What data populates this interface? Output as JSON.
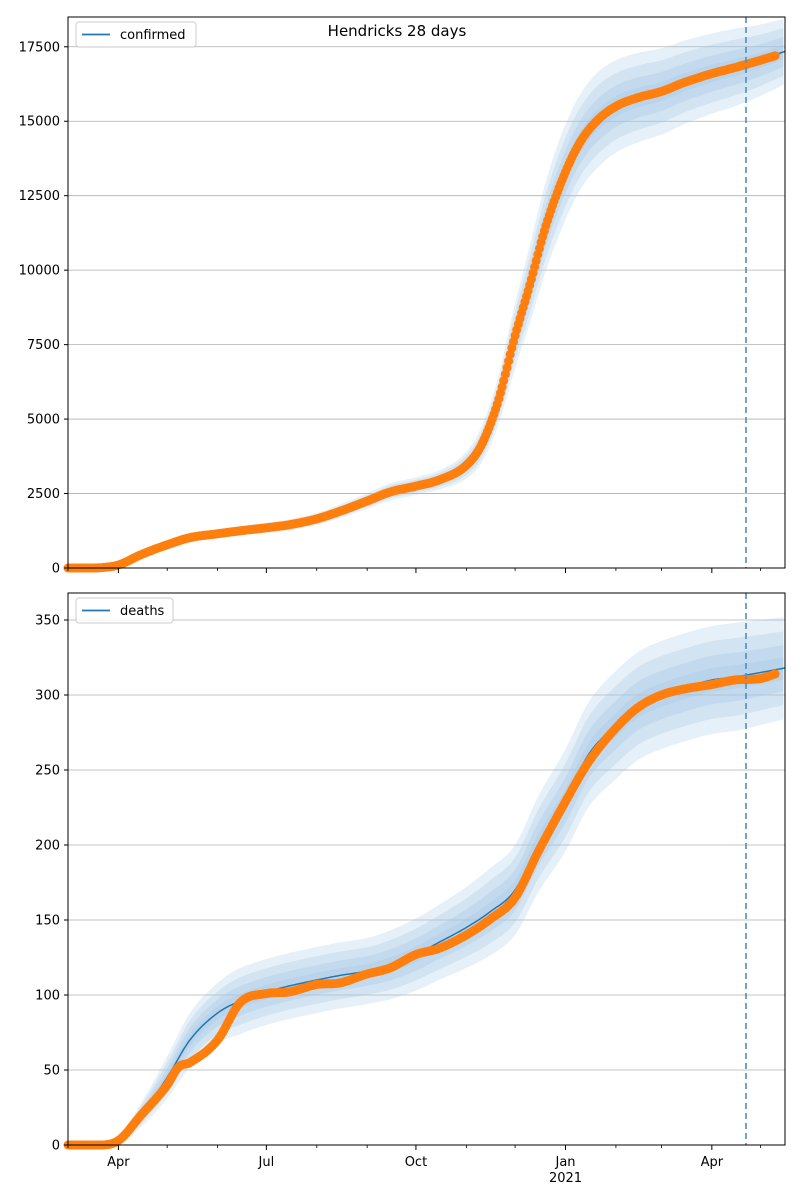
{
  "figure": {
    "title": "Hendricks 28 days"
  },
  "chart_data": [
    {
      "type": "line",
      "title": "Hendricks 28 days",
      "legend": {
        "label": "confirmed",
        "placement": "top-left"
      },
      "ylim": [
        0,
        18500
      ],
      "xlim": [
        "2020-03-01",
        "2021-05-16"
      ],
      "y_ticks": [
        0,
        2500,
        5000,
        7500,
        10000,
        12500,
        15000,
        17500
      ],
      "grid": "y",
      "forecast_start": "2021-04-22",
      "colors": {
        "fit": "#1f77b4",
        "observed": "#ff7f0e",
        "band": "#a6c8e6",
        "forecast_line": "#4f8fbf"
      },
      "model_fit": {
        "x": [
          "2020-03-01",
          "2020-03-15",
          "2020-03-25",
          "2020-04-01",
          "2020-04-15",
          "2020-05-01",
          "2020-05-15",
          "2020-06-01",
          "2020-06-15",
          "2020-07-01",
          "2020-07-15",
          "2020-08-01",
          "2020-08-15",
          "2020-09-01",
          "2020-09-15",
          "2020-10-01",
          "2020-10-15",
          "2020-11-01",
          "2020-11-10",
          "2020-11-20",
          "2020-12-01",
          "2020-12-10",
          "2020-12-20",
          "2021-01-01",
          "2021-01-10",
          "2021-01-20",
          "2021-02-01",
          "2021-02-15",
          "2021-03-01",
          "2021-03-15",
          "2021-04-01",
          "2021-04-15",
          "2021-05-01",
          "2021-05-16"
        ],
        "y": [
          0,
          0,
          20,
          80,
          400,
          750,
          1000,
          1150,
          1250,
          1350,
          1450,
          1650,
          1900,
          2250,
          2550,
          2750,
          2950,
          3450,
          4100,
          5500,
          7800,
          9500,
          11500,
          13300,
          14300,
          15000,
          15500,
          15800,
          16000,
          16300,
          16600,
          16800,
          17050,
          17350
        ],
        "band_halfwidths": [
          0,
          0,
          20,
          40,
          80,
          120,
          150,
          150,
          160,
          170,
          180,
          200,
          230,
          260,
          290,
          300,
          320,
          450,
          600,
          800,
          1100,
          1300,
          1500,
          1600,
          1600,
          1600,
          1550,
          1500,
          1450,
          1400,
          1350,
          1300,
          1200,
          1100
        ]
      },
      "observed": {
        "x": [
          "2020-03-01",
          "2020-03-15",
          "2020-03-25",
          "2020-04-01",
          "2020-04-15",
          "2020-05-01",
          "2020-05-15",
          "2020-06-01",
          "2020-06-15",
          "2020-07-01",
          "2020-07-15",
          "2020-08-01",
          "2020-08-15",
          "2020-09-01",
          "2020-09-15",
          "2020-10-01",
          "2020-10-15",
          "2020-11-01",
          "2020-11-10",
          "2020-11-20",
          "2020-12-01",
          "2020-12-10",
          "2020-12-20",
          "2021-01-01",
          "2021-01-10",
          "2021-01-20",
          "2021-02-01",
          "2021-02-15",
          "2021-03-01",
          "2021-03-15",
          "2021-04-01",
          "2021-04-15",
          "2021-05-01",
          "2021-05-10"
        ],
        "y": [
          0,
          0,
          30,
          100,
          450,
          780,
          1020,
          1150,
          1250,
          1350,
          1450,
          1650,
          1900,
          2250,
          2550,
          2750,
          2950,
          3450,
          4100,
          5500,
          7800,
          9500,
          11500,
          13300,
          14300,
          15000,
          15500,
          15800,
          16000,
          16300,
          16600,
          16800,
          17050,
          17200
        ]
      }
    },
    {
      "type": "line",
      "legend": {
        "label": "deaths",
        "placement": "top-left"
      },
      "ylim": [
        0,
        368
      ],
      "xlim": [
        "2020-03-01",
        "2021-05-16"
      ],
      "y_ticks": [
        0,
        50,
        100,
        150,
        200,
        250,
        300,
        350
      ],
      "x_ticks": [
        {
          "date": "2020-04-01",
          "label": "Apr",
          "sub": ""
        },
        {
          "date": "2020-07-01",
          "label": "Jul",
          "sub": ""
        },
        {
          "date": "2020-10-01",
          "label": "Oct",
          "sub": ""
        },
        {
          "date": "2021-01-01",
          "label": "Jan",
          "sub": "2021"
        },
        {
          "date": "2021-04-01",
          "label": "Apr",
          "sub": ""
        }
      ],
      "grid": "y",
      "forecast_start": "2021-04-22",
      "colors": {
        "fit": "#1f77b4",
        "observed": "#ff7f0e",
        "band": "#a6c8e6",
        "forecast_line": "#4f8fbf"
      },
      "model_fit": {
        "x": [
          "2020-03-01",
          "2020-03-20",
          "2020-04-01",
          "2020-04-15",
          "2020-05-01",
          "2020-05-15",
          "2020-06-01",
          "2020-06-15",
          "2020-07-01",
          "2020-07-15",
          "2020-08-01",
          "2020-08-15",
          "2020-09-01",
          "2020-09-15",
          "2020-10-01",
          "2020-10-15",
          "2020-11-01",
          "2020-11-15",
          "2020-12-01",
          "2020-12-15",
          "2021-01-01",
          "2021-01-15",
          "2021-02-01",
          "2021-02-15",
          "2021-03-01",
          "2021-03-15",
          "2021-04-01",
          "2021-04-15",
          "2021-05-01",
          "2021-05-16"
        ],
        "y": [
          0,
          0,
          3,
          20,
          45,
          70,
          88,
          96,
          102,
          106,
          110,
          113,
          116,
          120,
          127,
          135,
          145,
          155,
          170,
          200,
          230,
          260,
          280,
          293,
          300,
          305,
          310,
          312,
          315,
          318
        ],
        "band_halfwidths": [
          0,
          1,
          3,
          8,
          14,
          18,
          20,
          22,
          22,
          22,
          22,
          22,
          22,
          23,
          24,
          25,
          27,
          29,
          30,
          32,
          34,
          35,
          36,
          36,
          36,
          36,
          36,
          36,
          35,
          34
        ]
      },
      "observed": {
        "x": [
          "2020-03-01",
          "2020-03-20",
          "2020-04-01",
          "2020-04-15",
          "2020-05-01",
          "2020-05-08",
          "2020-05-15",
          "2020-06-01",
          "2020-06-15",
          "2020-07-01",
          "2020-07-15",
          "2020-08-01",
          "2020-08-15",
          "2020-09-01",
          "2020-09-15",
          "2020-10-01",
          "2020-10-15",
          "2020-11-01",
          "2020-11-15",
          "2020-12-01",
          "2020-12-15",
          "2021-01-01",
          "2021-01-15",
          "2021-02-01",
          "2021-02-15",
          "2021-03-01",
          "2021-03-15",
          "2021-04-01",
          "2021-04-15",
          "2021-05-01",
          "2021-05-10"
        ],
        "y": [
          0,
          0,
          3,
          20,
          40,
          52,
          55,
          70,
          95,
          101,
          102,
          107,
          108,
          114,
          118,
          127,
          131,
          140,
          150,
          165,
          195,
          229,
          255,
          278,
          292,
          300,
          304,
          307,
          310,
          311,
          314
        ]
      }
    }
  ]
}
